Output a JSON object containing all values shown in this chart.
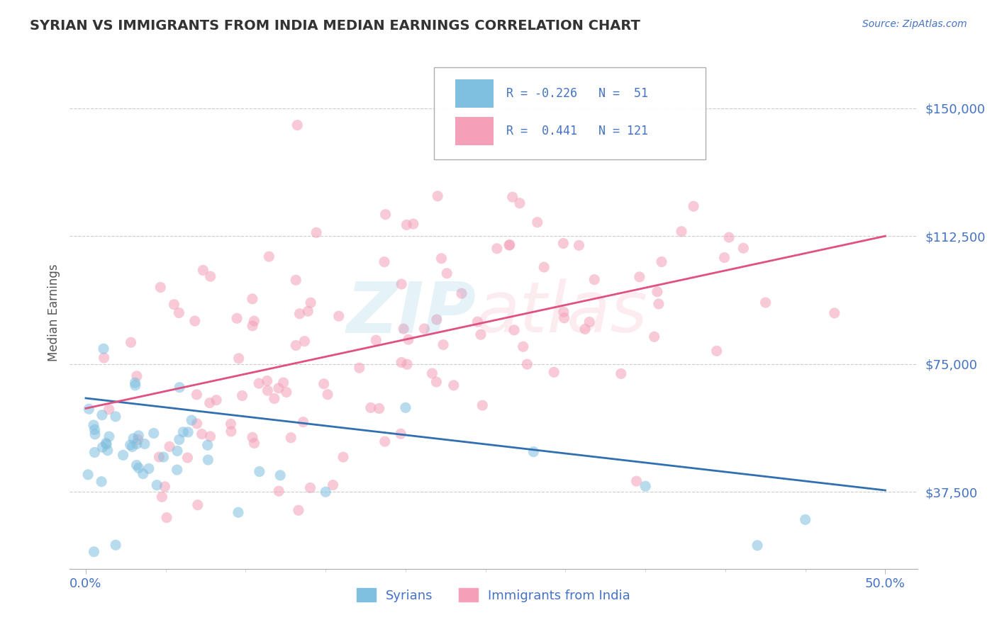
{
  "title": "SYRIAN VS IMMIGRANTS FROM INDIA MEDIAN EARNINGS CORRELATION CHART",
  "source": "Source: ZipAtlas.com",
  "ylabel": "Median Earnings",
  "xlim": [
    0.0,
    0.5
  ],
  "ylim": [
    15000,
    165000
  ],
  "yticks": [
    37500,
    75000,
    112500,
    150000
  ],
  "ytick_labels": [
    "$37,500",
    "$75,000",
    "$112,500",
    "$150,000"
  ],
  "xtick_labels": [
    "0.0%",
    "50.0%"
  ],
  "xtick_positions": [
    0.0,
    0.5
  ],
  "syrian_R": -0.226,
  "syrian_N": 51,
  "india_R": 0.441,
  "india_N": 121,
  "blue_color": "#7fbfdf",
  "pink_color": "#f4a0b8",
  "blue_line_color": "#3070b0",
  "pink_line_color": "#e05080",
  "title_color": "#333333",
  "axis_label_color": "#4472c4",
  "grid_color": "#cccccc",
  "watermark_zip_color": "#7fbfdf",
  "watermark_atlas_color": "#f4a0b8",
  "legend_color": "#4472c4",
  "syr_line_y0": 65000,
  "syr_line_y1": 38000,
  "ind_line_y0": 62000,
  "ind_line_y1": 112500
}
